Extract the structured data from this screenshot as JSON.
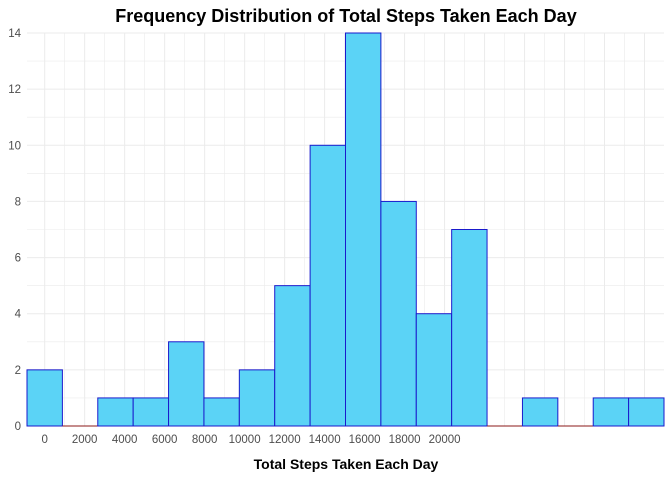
{
  "chart_data": {
    "type": "bar",
    "title": "Frequency Distribution of Total Steps Taken Each Day",
    "xlabel": "Total Steps Taken Each Day",
    "ylabel": "",
    "bin_width": 1770,
    "bins": [
      {
        "start": -885,
        "end": 885,
        "count": 2
      },
      {
        "start": 885,
        "end": 2655,
        "count": 0
      },
      {
        "start": 2655,
        "end": 4425,
        "count": 1
      },
      {
        "start": 4425,
        "end": 6195,
        "count": 1
      },
      {
        "start": 6195,
        "end": 7965,
        "count": 3
      },
      {
        "start": 7965,
        "end": 9735,
        "count": 1
      },
      {
        "start": 9735,
        "end": 11505,
        "count": 2
      },
      {
        "start": 11505,
        "end": 13275,
        "count": 5
      },
      {
        "start": 13275,
        "end": 15045,
        "count": 10
      },
      {
        "start": 15045,
        "end": 16815,
        "count": 14
      },
      {
        "start": 16815,
        "end": 18585,
        "count": 8
      },
      {
        "start": 18585,
        "end": 20355,
        "count": 4
      },
      {
        "start": 20355,
        "end": 22125,
        "count": 7
      },
      {
        "start": 22125,
        "end": 23895,
        "count": 0
      },
      {
        "start": 23895,
        "end": 25665,
        "count": 1
      },
      {
        "start": 25665,
        "end": 27435,
        "count": 0
      },
      {
        "start": 27435,
        "end": 29205,
        "count": 1
      },
      {
        "start": 29205,
        "end": 30975,
        "count": 1
      }
    ],
    "xticks": [
      0,
      2000,
      4000,
      6000,
      8000,
      10000,
      12000,
      14000,
      16000,
      18000,
      20000
    ],
    "yticks": [
      0,
      2,
      4,
      6,
      8,
      10,
      12,
      14
    ],
    "ylim": [
      0,
      14
    ],
    "grid": true,
    "legend": "none",
    "colors": {
      "fill": "#5bd3f6",
      "stroke": "#1a1acc",
      "zero_stroke": "#8b1a1a",
      "grid": "#ebebeb",
      "tick_text": "#4d4d4d"
    }
  }
}
